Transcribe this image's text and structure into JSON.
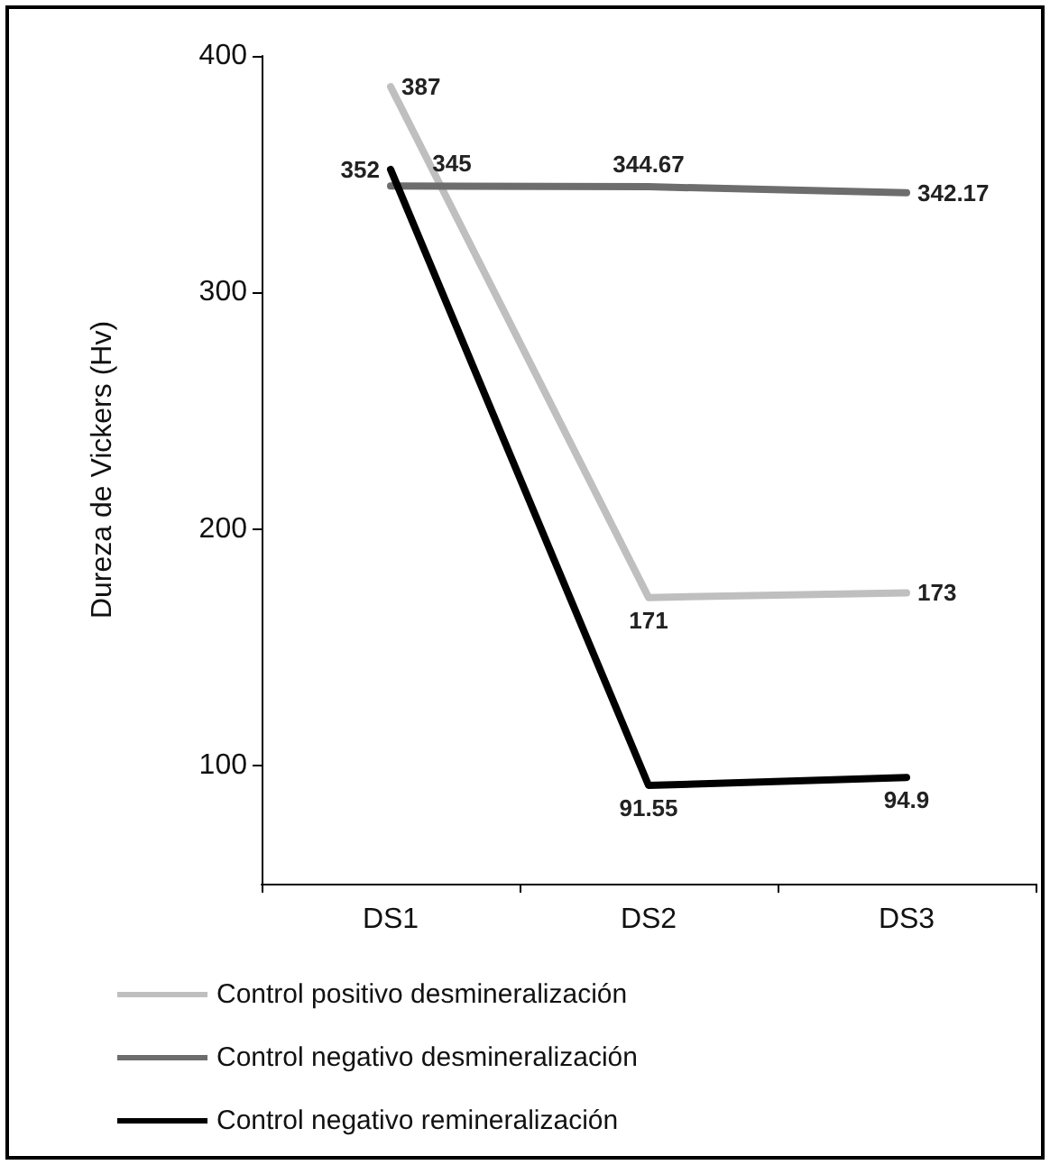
{
  "chart_data": {
    "type": "line",
    "ylabel": "Dureza de Vickers (Hv)",
    "categories": [
      "DS1",
      "DS2",
      "DS3"
    ],
    "series": [
      {
        "name": "Control positivo desmineralización",
        "color": "#bfbfbf",
        "values": [
          387,
          171,
          173
        ]
      },
      {
        "name": "Control negativo desmineralización",
        "color": "#6d6d6d",
        "values": [
          345,
          344.67,
          342.17
        ]
      },
      {
        "name": "Control negativo remineralización",
        "color": "#000000",
        "values": [
          352,
          91.55,
          94.9
        ]
      }
    ],
    "ylim": [
      50,
      400
    ],
    "yticks": [
      100,
      200,
      300,
      400
    ],
    "data_labels": true,
    "grid": false,
    "legend": "bottom",
    "marker": "none",
    "line_style": "solid"
  }
}
